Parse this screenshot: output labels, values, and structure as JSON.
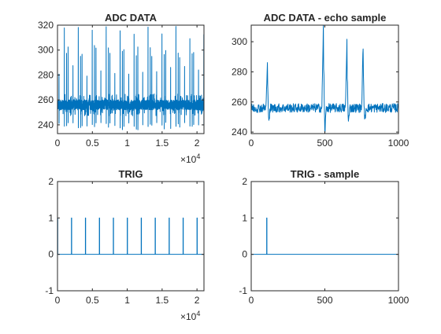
{
  "colors": {
    "series": "#0072BD",
    "axes": "#262626",
    "background": "#ffffff"
  },
  "chart_data": [
    {
      "id": "adc_data",
      "type": "line",
      "title": "ADC DATA",
      "xlabel": "",
      "ylabel": "",
      "xlim": [
        0,
        21000
      ],
      "ylim": [
        233,
        320
      ],
      "xticks": [
        0,
        5000,
        10000,
        15000,
        20000
      ],
      "xtick_labels": [
        "0",
        "0.5",
        "1",
        "1.5",
        "2"
      ],
      "x_exponent": "×10",
      "x_exponent_power": "4",
      "yticks": [
        240,
        260,
        280,
        300,
        320
      ],
      "ytick_labels": [
        "240",
        "260",
        "280",
        "300",
        "320"
      ],
      "grid": false,
      "signal": {
        "n_samples": 21000,
        "baseline": 256,
        "noise_halfwidth": 4,
        "echo_times": [
          110,
          490,
          650,
          760
        ],
        "echo_heights": [
          28,
          58,
          44,
          42
        ],
        "trigger_period": 2000,
        "trigger_start": 0,
        "peak_max": 320,
        "trough_min": 235
      }
    },
    {
      "id": "adc_echo",
      "type": "line",
      "title": "ADC DATA - echo sample",
      "xlabel": "",
      "ylabel": "",
      "xlim": [
        0,
        1000
      ],
      "ylim": [
        239,
        311
      ],
      "xticks": [
        0,
        500,
        1000
      ],
      "xtick_labels": [
        "0",
        "500",
        "1000"
      ],
      "yticks": [
        240,
        260,
        280,
        300
      ],
      "ytick_labels": [
        "240",
        "260",
        "280",
        "300"
      ],
      "grid": false,
      "signal": {
        "n_samples": 1000,
        "baseline": 256,
        "noise_halfwidth": 3,
        "echoes": [
          {
            "x": 110,
            "peak": 284,
            "trough": 248
          },
          {
            "x": 490,
            "peak": 311,
            "trough": 240
          },
          {
            "x": 650,
            "peak": 300,
            "trough": 246
          },
          {
            "x": 760,
            "peak": 298,
            "trough": 246
          }
        ]
      }
    },
    {
      "id": "trig",
      "type": "line",
      "title": "TRIG",
      "xlabel": "",
      "ylabel": "",
      "xlim": [
        0,
        21000
      ],
      "ylim": [
        -1,
        2
      ],
      "xticks": [
        0,
        5000,
        10000,
        15000,
        20000
      ],
      "xtick_labels": [
        "0",
        "0.5",
        "1",
        "1.5",
        "2"
      ],
      "x_exponent": "×10",
      "x_exponent_power": "4",
      "yticks": [
        -1,
        0,
        1,
        2
      ],
      "ytick_labels": [
        "-1",
        "0",
        "1",
        "2"
      ],
      "grid": false,
      "pulses_x": [
        0,
        2000,
        4000,
        6000,
        8000,
        10000,
        12000,
        14000,
        16000,
        18000,
        20000
      ],
      "pulse_high": 1,
      "pulse_low": 0
    },
    {
      "id": "trig_sample",
      "type": "line",
      "title": "TRIG - sample",
      "xlabel": "",
      "ylabel": "",
      "xlim": [
        0,
        1000
      ],
      "ylim": [
        -1,
        2
      ],
      "xticks": [
        0,
        500,
        1000
      ],
      "xtick_labels": [
        "0",
        "500",
        "1000"
      ],
      "yticks": [
        -1,
        0,
        1,
        2
      ],
      "ytick_labels": [
        "-1",
        "0",
        "1",
        "2"
      ],
      "grid": false,
      "pulses_x": [
        105
      ],
      "pulse_high": 1,
      "pulse_low": 0
    }
  ]
}
